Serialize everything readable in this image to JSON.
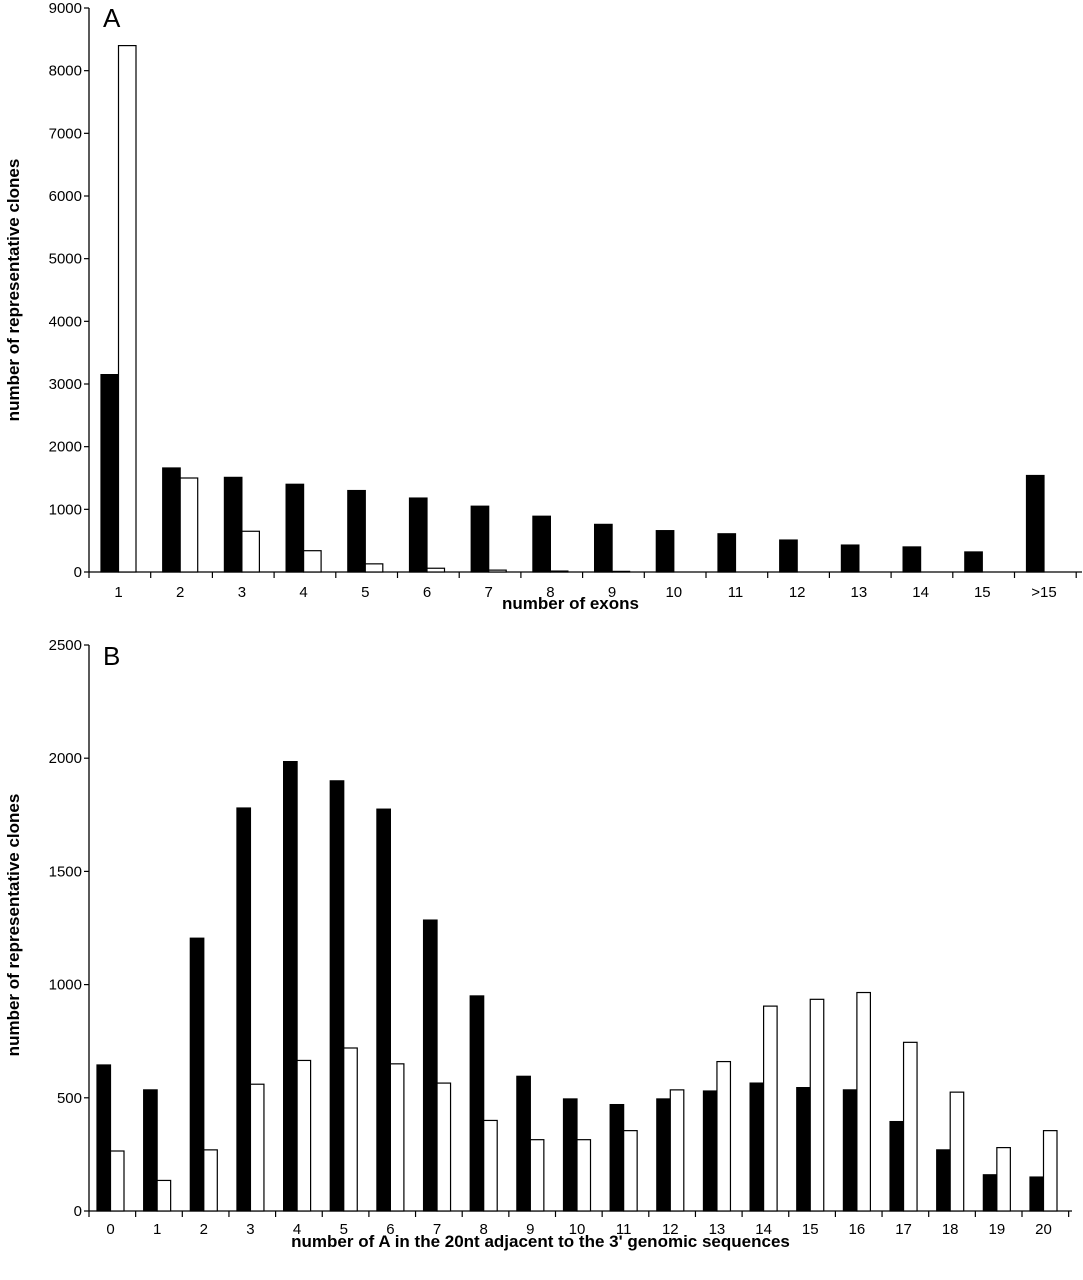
{
  "chart_data": [
    {
      "type": "bar",
      "panel_label": "A",
      "categories": [
        "1",
        "2",
        "3",
        "4",
        "5",
        "6",
        "7",
        "8",
        "9",
        "10",
        "11",
        "12",
        "13",
        "14",
        "15",
        ">15"
      ],
      "series": [
        {
          "values": [
            3150,
            1660,
            1510,
            1400,
            1300,
            1180,
            1050,
            890,
            760,
            660,
            610,
            510,
            430,
            400,
            320,
            1540
          ],
          "color": "#000000"
        },
        {
          "values": [
            8400,
            1500,
            650,
            340,
            130,
            60,
            30,
            15,
            10,
            0,
            0,
            0,
            0,
            0,
            0,
            0
          ],
          "color": "#ffffff"
        }
      ],
      "xlabel": "number of exons",
      "ylabel": "number of representative clones",
      "ylim": [
        0,
        9000
      ],
      "yticks": [
        0,
        1000,
        2000,
        3000,
        4000,
        5000,
        6000,
        7000,
        8000,
        9000
      ],
      "grid": false,
      "legend": "none"
    },
    {
      "type": "bar",
      "panel_label": "B",
      "categories": [
        "0",
        "1",
        "2",
        "3",
        "4",
        "5",
        "6",
        "7",
        "8",
        "9",
        "10",
        "11",
        "12",
        "13",
        "14",
        "15",
        "16",
        "17",
        "18",
        "19",
        "20"
      ],
      "series": [
        {
          "values": [
            645,
            535,
            1205,
            1780,
            1985,
            1900,
            1775,
            1285,
            950,
            595,
            495,
            470,
            495,
            530,
            565,
            545,
            535,
            395,
            270,
            160,
            150
          ],
          "color": "#000000"
        },
        {
          "values": [
            265,
            135,
            270,
            560,
            665,
            720,
            650,
            565,
            400,
            315,
            315,
            355,
            535,
            660,
            905,
            935,
            965,
            745,
            525,
            280,
            355
          ],
          "color": "#ffffff"
        }
      ],
      "xlabel": "number of A in the 20nt adjacent to the 3' genomic sequences",
      "ylabel": "number of representative clones",
      "ylim": [
        0,
        2500
      ],
      "yticks": [
        0,
        500,
        1000,
        1500,
        2000,
        2500
      ],
      "grid": false,
      "legend": "none"
    }
  ]
}
